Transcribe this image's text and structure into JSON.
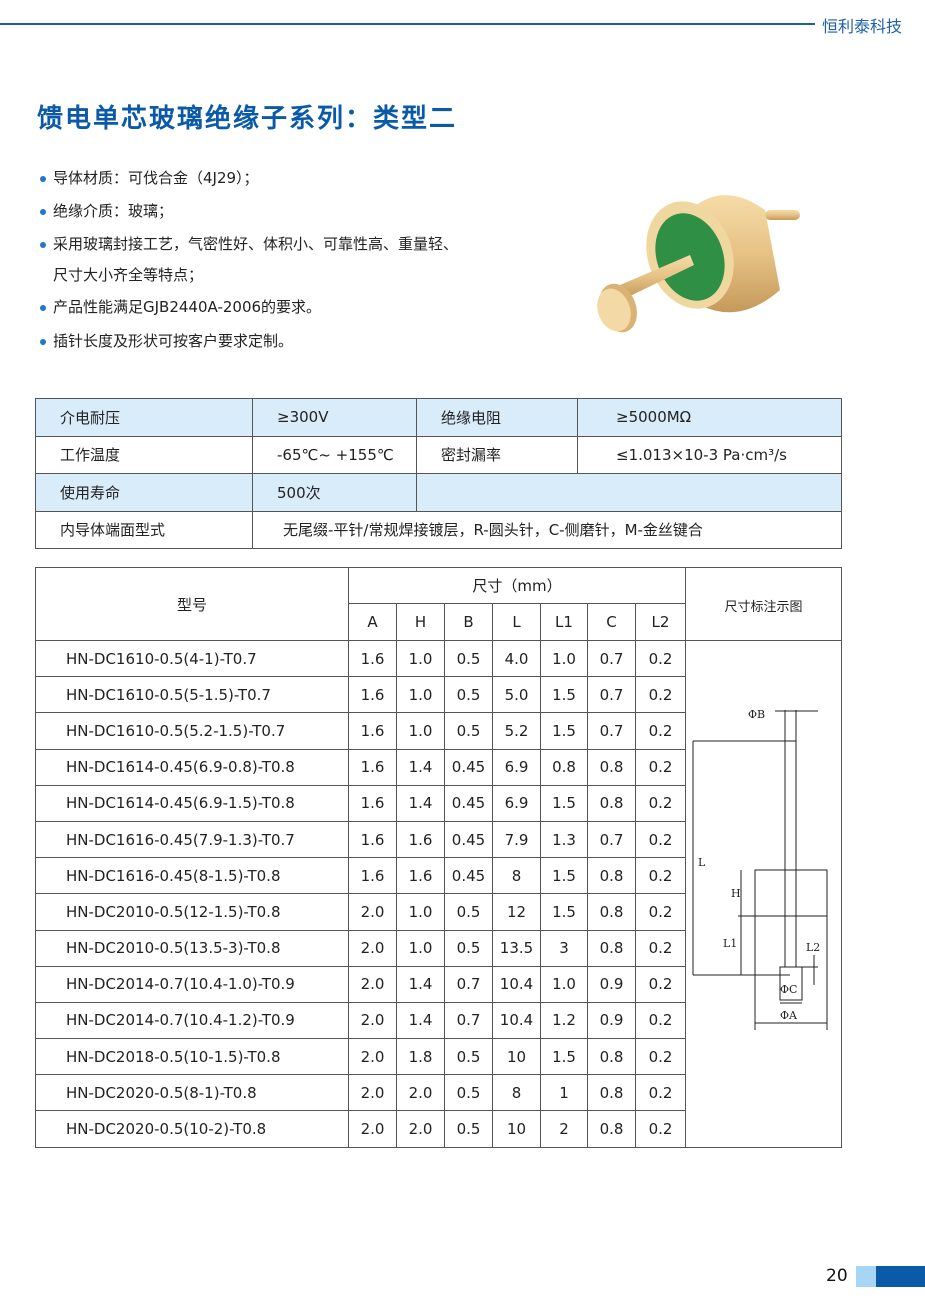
{
  "header": {
    "brand": "恒利泰科技"
  },
  "title": "馈电单芯玻璃绝缘子系列：类型二",
  "bullets": [
    "导体材质：可伐合金（4J29）；",
    "绝缘介质：玻璃；",
    "采用玻璃封接工艺，气密性好、体积小、可靠性高、重量轻、",
    "尺寸大小齐全等特点；",
    "产品性能满足GJB2440A-2006的要求。",
    "插针长度及形状可按客户要求定制。"
  ],
  "spec": {
    "r1": [
      "介电耐压",
      "≥300V",
      "绝缘电阻",
      "≥5000MΩ"
    ],
    "r2": [
      "工作温度",
      "-65℃~ +155℃",
      "密封漏率",
      "≤1.013×10-3 Pa·cm³/s"
    ],
    "r3": [
      "使用寿命",
      "500次"
    ],
    "r4": [
      "内导体端面型式",
      "无尾缀-平针/常规焊接镀层，R-圆头针，C-侧磨针，M-金丝键合"
    ]
  },
  "table": {
    "model_header": "型号",
    "dim_header": "尺寸（mm）",
    "diagram_header": "尺寸标注示图",
    "cols": [
      "A",
      "H",
      "B",
      "L",
      "L1",
      "C",
      "L2"
    ],
    "rows": [
      [
        "HN-DC1610-0.5(4-1)-T0.7",
        "1.6",
        "1.0",
        "0.5",
        "4.0",
        "1.0",
        "0.7",
        "0.2"
      ],
      [
        "HN-DC1610-0.5(5-1.5)-T0.7",
        "1.6",
        "1.0",
        "0.5",
        "5.0",
        "1.5",
        "0.7",
        "0.2"
      ],
      [
        "HN-DC1610-0.5(5.2-1.5)-T0.7",
        "1.6",
        "1.0",
        "0.5",
        "5.2",
        "1.5",
        "0.7",
        "0.2"
      ],
      [
        "HN-DC1614-0.45(6.9-0.8)-T0.8",
        "1.6",
        "1.4",
        "0.45",
        "6.9",
        "0.8",
        "0.8",
        "0.2"
      ],
      [
        "HN-DC1614-0.45(6.9-1.5)-T0.8",
        "1.6",
        "1.4",
        "0.45",
        "6.9",
        "1.5",
        "0.8",
        "0.2"
      ],
      [
        "HN-DC1616-0.45(7.9-1.3)-T0.7",
        "1.6",
        "1.6",
        "0.45",
        "7.9",
        "1.3",
        "0.7",
        "0.2"
      ],
      [
        "HN-DC1616-0.45(8-1.5)-T0.8",
        "1.6",
        "1.6",
        "0.45",
        "8",
        "1.5",
        "0.8",
        "0.2"
      ],
      [
        "HN-DC2010-0.5(12-1.5)-T0.8",
        "2.0",
        "1.0",
        "0.5",
        "12",
        "1.5",
        "0.8",
        "0.2"
      ],
      [
        "HN-DC2010-0.5(13.5-3)-T0.8",
        "2.0",
        "1.0",
        "0.5",
        "13.5",
        "3",
        "0.8",
        "0.2"
      ],
      [
        "HN-DC2014-0.7(10.4-1.0)-T0.9",
        "2.0",
        "1.4",
        "0.7",
        "10.4",
        "1.0",
        "0.9",
        "0.2"
      ],
      [
        "HN-DC2014-0.7(10.4-1.2)-T0.9",
        "2.0",
        "1.4",
        "0.7",
        "10.4",
        "1.2",
        "0.9",
        "0.2"
      ],
      [
        "HN-DC2018-0.5(10-1.5)-T0.8",
        "2.0",
        "1.8",
        "0.5",
        "10",
        "1.5",
        "0.8",
        "0.2"
      ],
      [
        "HN-DC2020-0.5(8-1)-T0.8",
        "2.0",
        "2.0",
        "0.5",
        "8",
        "1",
        "0.8",
        "0.2"
      ],
      [
        "HN-DC2020-0.5(10-2)-T0.8",
        "2.0",
        "2.0",
        "0.5",
        "10",
        "2",
        "0.8",
        "0.2"
      ]
    ]
  },
  "diagram": {
    "labels": {
      "B": "ΦB",
      "L": "L",
      "H": "H",
      "L1": "L1",
      "L2": "L2",
      "C": "ΦC",
      "A": "ΦA"
    }
  },
  "page_number": "20",
  "colors": {
    "brand_blue": "#0b5aa8",
    "row_blue": "#d8ecf9",
    "accent_light": "#a6d6f3"
  }
}
